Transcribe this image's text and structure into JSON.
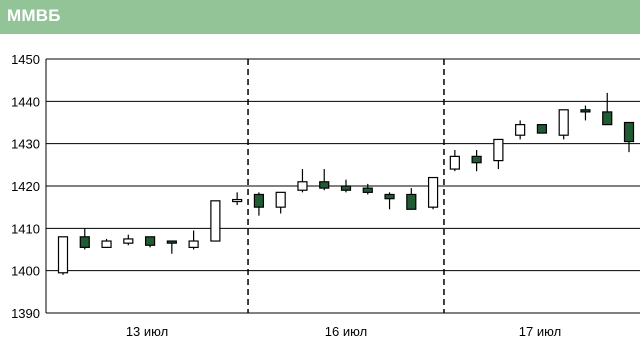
{
  "chart_data": {
    "type": "candlestick",
    "title": "ММВБ",
    "xlabel": "",
    "ylabel": "",
    "ylim": [
      1390,
      1450
    ],
    "yticks": [
      1390,
      1400,
      1410,
      1420,
      1430,
      1440,
      1450
    ],
    "xgroup_labels": [
      "13 июл",
      "16 июл",
      "17 июл"
    ],
    "grid": "horizontal",
    "legend": "none",
    "colors": {
      "header": "#92c498",
      "bear_fill": "#1f5c33",
      "bull_fill": "#ffffff",
      "outline": "#000000",
      "grid": "#000000"
    },
    "candles": [
      {
        "day": "13 июл",
        "open": 1399.5,
        "close": 1408.0,
        "high": 1408.0,
        "low": 1399.0
      },
      {
        "day": "13 июл",
        "open": 1408.0,
        "close": 1405.5,
        "high": 1410.0,
        "low": 1405.0
      },
      {
        "day": "13 июл",
        "open": 1405.5,
        "close": 1407.0,
        "high": 1407.5,
        "low": 1405.5
      },
      {
        "day": "13 июл",
        "open": 1406.5,
        "close": 1407.5,
        "high": 1408.5,
        "low": 1406.0
      },
      {
        "day": "13 июл",
        "open": 1408.0,
        "close": 1406.0,
        "high": 1408.0,
        "low": 1405.5
      },
      {
        "day": "13 июл",
        "open": 1407.0,
        "close": 1406.5,
        "high": 1407.0,
        "low": 1404.0
      },
      {
        "day": "13 июл",
        "open": 1405.5,
        "close": 1407.0,
        "high": 1409.5,
        "low": 1405.0
      },
      {
        "day": "13 июл",
        "open": 1407.0,
        "close": 1416.5,
        "high": 1416.5,
        "low": 1407.0
      },
      {
        "day": "13 июл",
        "open": 1416.5,
        "close": 1416.8,
        "high": 1418.5,
        "low": 1415.5
      },
      {
        "day": "16 июл",
        "open": 1418.0,
        "close": 1415.0,
        "high": 1418.5,
        "low": 1413.0
      },
      {
        "day": "16 июл",
        "open": 1415.0,
        "close": 1418.5,
        "high": 1418.5,
        "low": 1413.5
      },
      {
        "day": "16 июл",
        "open": 1419.0,
        "close": 1421.0,
        "high": 1424.0,
        "low": 1418.5
      },
      {
        "day": "16 июл",
        "open": 1421.0,
        "close": 1419.5,
        "high": 1424.0,
        "low": 1419.0
      },
      {
        "day": "16 июл",
        "open": 1420.0,
        "close": 1419.0,
        "high": 1421.5,
        "low": 1418.5
      },
      {
        "day": "16 июл",
        "open": 1419.5,
        "close": 1418.5,
        "high": 1420.5,
        "low": 1418.0
      },
      {
        "day": "16 июл",
        "open": 1418.0,
        "close": 1417.0,
        "high": 1418.5,
        "low": 1414.5
      },
      {
        "day": "16 июл",
        "open": 1418.0,
        "close": 1414.5,
        "high": 1419.5,
        "low": 1414.5
      },
      {
        "day": "16 июл",
        "open": 1415.0,
        "close": 1422.0,
        "high": 1422.0,
        "low": 1414.5
      },
      {
        "day": "17 июл",
        "open": 1424.0,
        "close": 1427.0,
        "high": 1428.5,
        "low": 1423.5
      },
      {
        "day": "17 июл",
        "open": 1427.0,
        "close": 1425.5,
        "high": 1428.5,
        "low": 1423.5
      },
      {
        "day": "17 июл",
        "open": 1426.0,
        "close": 1431.0,
        "high": 1431.0,
        "low": 1424.0
      },
      {
        "day": "17 июл",
        "open": 1432.0,
        "close": 1434.5,
        "high": 1435.5,
        "low": 1431.0
      },
      {
        "day": "17 июл",
        "open": 1434.5,
        "close": 1432.5,
        "high": 1434.5,
        "low": 1432.5
      },
      {
        "day": "17 июл",
        "open": 1432.0,
        "close": 1438.0,
        "high": 1438.0,
        "low": 1431.0
      },
      {
        "day": "17 июл",
        "open": 1438.0,
        "close": 1437.5,
        "high": 1439.0,
        "low": 1435.5
      },
      {
        "day": "17 июл",
        "open": 1437.5,
        "close": 1434.5,
        "high": 1442.0,
        "low": 1434.5
      },
      {
        "day": "17 июл",
        "open": 1435.0,
        "close": 1430.5,
        "high": 1435.0,
        "low": 1428.0
      }
    ]
  }
}
